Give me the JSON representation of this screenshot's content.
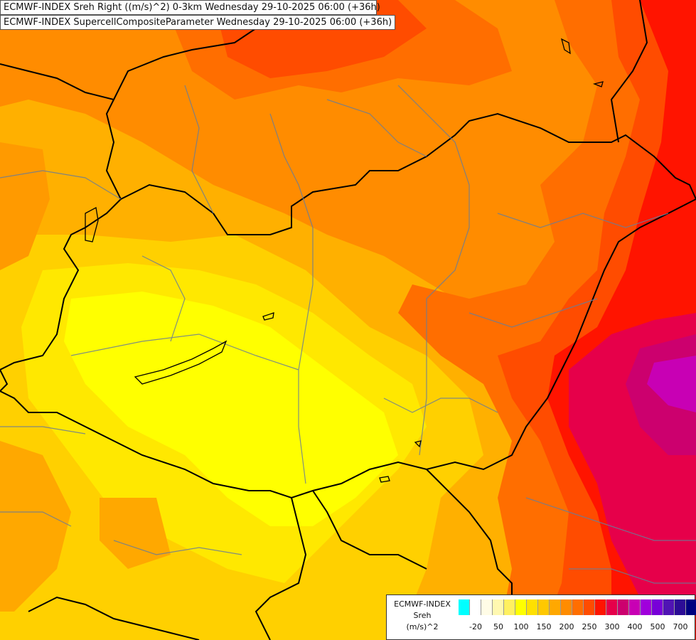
{
  "titles": {
    "line1": "ECMWF-INDEX Sreh Right ((m/s)^2) 0-3km Wednesday 29-10-2025 06:00 (+36h)",
    "line2": "ECMWF-INDEX SupercellCompositeParameter Wednesday 29-10-2025 06:00 (+36h)"
  },
  "legend": {
    "model": "ECMWF-INDEX",
    "param": "Sreh",
    "unit": "(m/s)^2",
    "colors": [
      "#00ffff",
      "#ffffff",
      "#fffce6",
      "#fff8b0",
      "#fff060",
      "#ffff00",
      "#ffe000",
      "#ffc800",
      "#ffa800",
      "#ff8c00",
      "#ff6e00",
      "#ff4c00",
      "#ff1400",
      "#e6004a",
      "#cc006e",
      "#c800b4",
      "#a000dc",
      "#7800d8",
      "#5014b4",
      "#2c0c96",
      "#000080"
    ],
    "ticks": [
      {
        "value": "-20",
        "index": 1
      },
      {
        "value": "50",
        "index": 3
      },
      {
        "value": "100",
        "index": 5
      },
      {
        "value": "150",
        "index": 7
      },
      {
        "value": "200",
        "index": 9
      },
      {
        "value": "250",
        "index": 11
      },
      {
        "value": "300",
        "index": 13
      },
      {
        "value": "400",
        "index": 15
      },
      {
        "value": "500",
        "index": 17
      },
      {
        "value": "700",
        "index": 19
      }
    ]
  }
}
